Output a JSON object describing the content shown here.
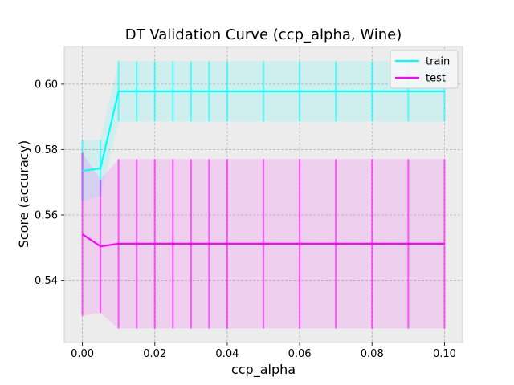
{
  "chart_data": {
    "type": "line",
    "title": "DT Validation Curve (ccp_alpha, Wine)",
    "xlabel": "ccp_alpha",
    "ylabel": "Score (accuracy)",
    "xlim": [
      -0.005,
      0.105
    ],
    "ylim": [
      0.521,
      0.6115
    ],
    "xticks": [
      0.0,
      0.02,
      0.04,
      0.06,
      0.08,
      0.1
    ],
    "xtick_labels": [
      "0.00",
      "0.02",
      "0.04",
      "0.06",
      "0.08",
      "0.10"
    ],
    "yticks": [
      0.54,
      0.56,
      0.58,
      0.6
    ],
    "ytick_labels": [
      "0.54",
      "0.56",
      "0.58",
      "0.60"
    ],
    "grid": true,
    "legend_position": "top-right",
    "x": [
      0.0,
      0.005,
      0.01,
      0.015,
      0.02,
      0.025,
      0.03,
      0.035,
      0.04,
      0.05,
      0.06,
      0.07,
      0.08,
      0.09,
      0.1
    ],
    "series": [
      {
        "name": "train",
        "color": "#00ffff",
        "values": [
          0.5735,
          0.5742,
          0.5978,
          0.5978,
          0.5978,
          0.5978,
          0.5978,
          0.5978,
          0.5978,
          0.5978,
          0.5978,
          0.5978,
          0.5978,
          0.5978,
          0.5978
        ],
        "lower": [
          0.5642,
          0.5658,
          0.5886,
          0.5886,
          0.5886,
          0.5886,
          0.5886,
          0.5886,
          0.5886,
          0.5886,
          0.5886,
          0.5886,
          0.5886,
          0.5886,
          0.5886
        ],
        "upper": [
          0.5829,
          0.5829,
          0.607,
          0.607,
          0.607,
          0.607,
          0.607,
          0.607,
          0.607,
          0.607,
          0.607,
          0.607,
          0.607,
          0.607,
          0.607
        ]
      },
      {
        "name": "test",
        "color": "#ff00ff",
        "values": [
          0.5541,
          0.5504,
          0.5512,
          0.5512,
          0.5512,
          0.5512,
          0.5512,
          0.5512,
          0.5512,
          0.5512,
          0.5512,
          0.5512,
          0.5512,
          0.5512,
          0.5512
        ],
        "lower": [
          0.5292,
          0.53,
          0.5253,
          0.5253,
          0.5253,
          0.5253,
          0.5253,
          0.5253,
          0.5253,
          0.5253,
          0.5253,
          0.5253,
          0.5253,
          0.5253,
          0.5253
        ],
        "upper": [
          0.579,
          0.5708,
          0.5771,
          0.5771,
          0.5771,
          0.5771,
          0.5771,
          0.5771,
          0.5771,
          0.5771,
          0.5771,
          0.5771,
          0.5771,
          0.5771,
          0.5771
        ]
      }
    ]
  }
}
